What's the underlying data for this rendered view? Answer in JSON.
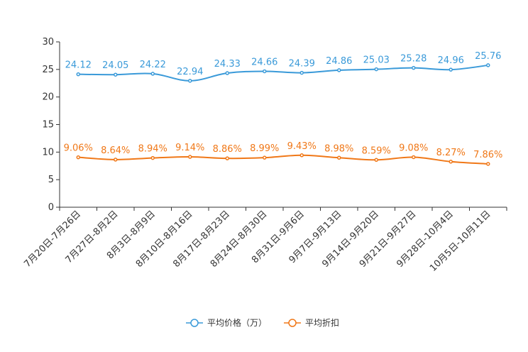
{
  "chart_data": {
    "type": "line",
    "categories": [
      "7月20日-7月26日",
      "7月27日-8月2日",
      "8月3日-8月9日",
      "8月10日-8月16日",
      "8月17日-8月23日",
      "8月24日-8月30日",
      "8月31日-9月6日",
      "9月7日-9月13日",
      "9月14日-9月20日",
      "9月21日-9月27日",
      "9月28日-10月4日",
      "10月5日-10月11日"
    ],
    "ylim": [
      0,
      30
    ],
    "yticks": [
      0,
      5,
      10,
      15,
      20,
      25,
      30
    ],
    "series": [
      {
        "name": "平均价格（万）",
        "color": "#3a9ad9",
        "values": [
          24.12,
          24.05,
          24.22,
          22.94,
          24.33,
          24.66,
          24.39,
          24.86,
          25.03,
          25.28,
          24.96,
          25.76
        ],
        "labels": [
          "24.12",
          "24.05",
          "24.22",
          "22.94",
          "24.33",
          "24.66",
          "24.39",
          "24.86",
          "25.03",
          "25.28",
          "24.96",
          "25.76"
        ]
      },
      {
        "name": "平均折扣",
        "color": "#f07818",
        "values": [
          9.06,
          8.64,
          8.94,
          9.14,
          8.86,
          8.99,
          9.43,
          8.98,
          8.59,
          9.08,
          8.27,
          7.86
        ],
        "labels": [
          "9.06%",
          "8.64%",
          "8.94%",
          "9.14%",
          "8.86%",
          "8.99%",
          "9.43%",
          "8.98%",
          "8.59%",
          "9.08%",
          "8.27%",
          "7.86%"
        ]
      }
    ],
    "legend_position": "bottom"
  }
}
